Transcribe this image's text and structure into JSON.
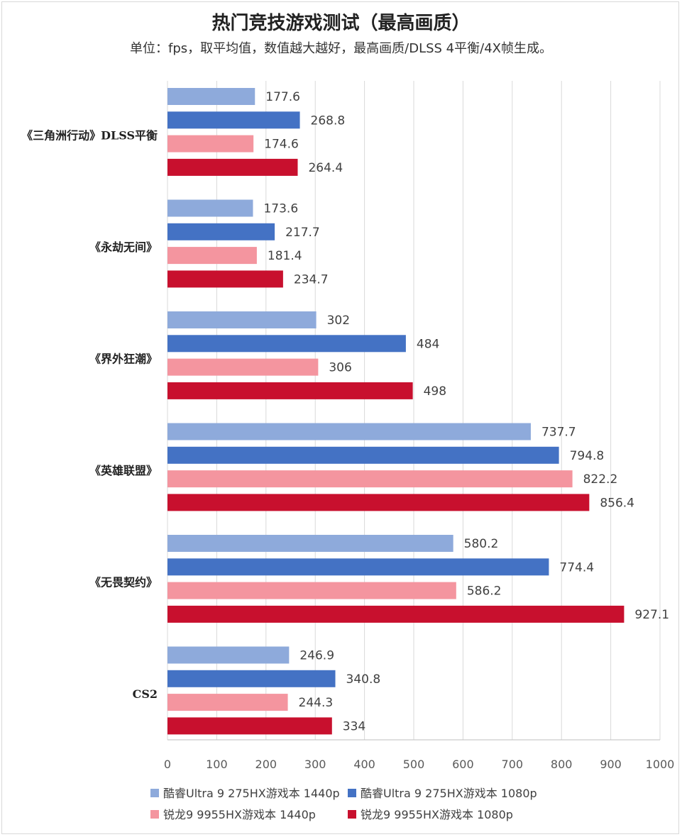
{
  "chart_data": {
    "type": "bar",
    "orientation": "horizontal",
    "title": "热门竞技游戏测试（最高画质）",
    "subtitle": "单位：fps，取平均值，数值越大越好，最高画质/DLSS 4平衡/4X帧生成。",
    "categories": [
      "《三角洲行动》DLSS平衡",
      "《永劫无间》",
      "《界外狂潮》",
      "《英雄联盟》",
      "《无畏契约》",
      "CS2"
    ],
    "series": [
      {
        "name": "酷睿Ultra 9 275HX游戏本 1440p",
        "color": "#8eaadb",
        "values": [
          177.6,
          173.6,
          302,
          737.7,
          580.2,
          246.9
        ]
      },
      {
        "name": "酷睿Ultra 9 275HX游戏本 1080p",
        "color": "#4472c4",
        "values": [
          268.8,
          217.7,
          484,
          794.8,
          774.4,
          340.8
        ]
      },
      {
        "name": "锐龙9 9955HX游戏本 1440p",
        "color": "#f4959f",
        "values": [
          174.6,
          181.4,
          306,
          822.2,
          586.2,
          244.3
        ]
      },
      {
        "name": "锐龙9 9955HX游戏本 1080p",
        "color": "#c8102e",
        "values": [
          264.4,
          234.7,
          498,
          856.4,
          927.1,
          334
        ]
      }
    ],
    "xlim": [
      0,
      1000
    ],
    "xticks": [
      0,
      100,
      200,
      300,
      400,
      500,
      600,
      700,
      800,
      900,
      1000
    ],
    "grid": true,
    "legend_position": "bottom",
    "xlabel": "",
    "ylabel": ""
  }
}
